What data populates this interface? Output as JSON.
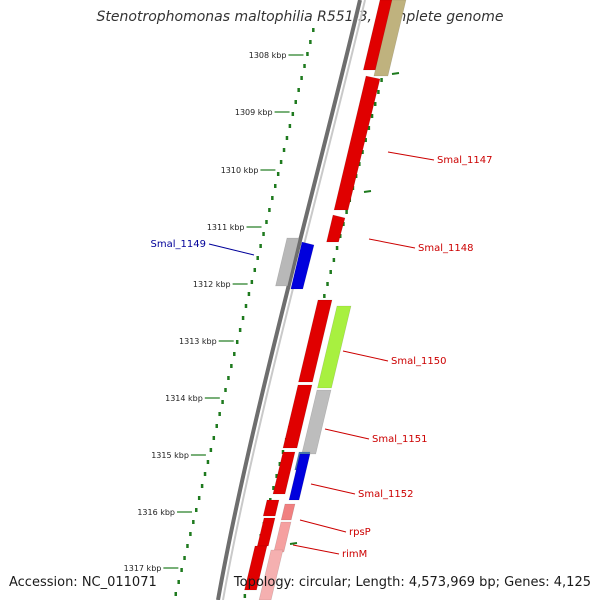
{
  "title": "Stenotrophomonas maltophilia R551-3, complete genome",
  "accession_text": "Accession: NC_011071",
  "topology_text": "Topology: circular; Length: 4,573,969 bp; Genes: 4,125",
  "colors": {
    "backbone": "#8a8a8a",
    "tick_dots": "#1e7a1e",
    "forward_gene": "#ff0000",
    "reverse_label": "#cc0000",
    "forward_label": "#000099"
  },
  "scale_labels": [
    "1308 kbp",
    "1309 kbp",
    "1310 kbp",
    "1311 kbp",
    "1312 kbp",
    "1313 kbp",
    "1314 kbp",
    "1315 kbp",
    "1316 kbp",
    "1317 kbp"
  ],
  "gene_labels": [
    {
      "text": "Smal_1147",
      "color": "#cc0000"
    },
    {
      "text": "Smal_1148",
      "color": "#cc0000"
    },
    {
      "text": "Smal_1149",
      "color": "#000099"
    },
    {
      "text": "Smal_1150",
      "color": "#cc0000"
    },
    {
      "text": "Smal_1151",
      "color": "#cc0000"
    },
    {
      "text": "Smal_1152",
      "color": "#cc0000"
    },
    {
      "text": "rpsP",
      "color": "#cc0000"
    },
    {
      "text": "rimM",
      "color": "#cc0000"
    }
  ]
}
